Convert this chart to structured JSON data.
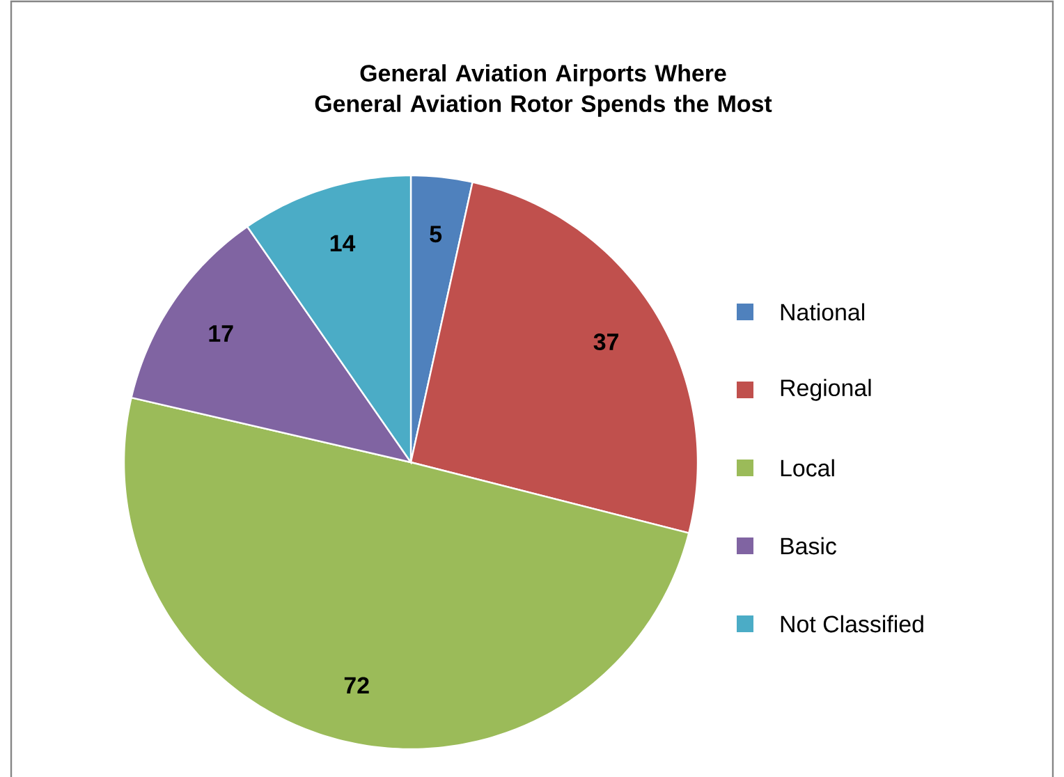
{
  "chart_data": {
    "type": "pie",
    "title": "General Aviation Airports Where General Aviation Rotor Spends the Most",
    "categories": [
      "National",
      "Regional",
      "Local",
      "Basic",
      "Not Classified"
    ],
    "values": [
      5,
      37,
      72,
      17,
      14
    ],
    "colors": [
      "#4f81bd",
      "#c0504d",
      "#9bbb59",
      "#8064a2",
      "#4bacc6"
    ],
    "data_labels": true,
    "legend": "right"
  }
}
